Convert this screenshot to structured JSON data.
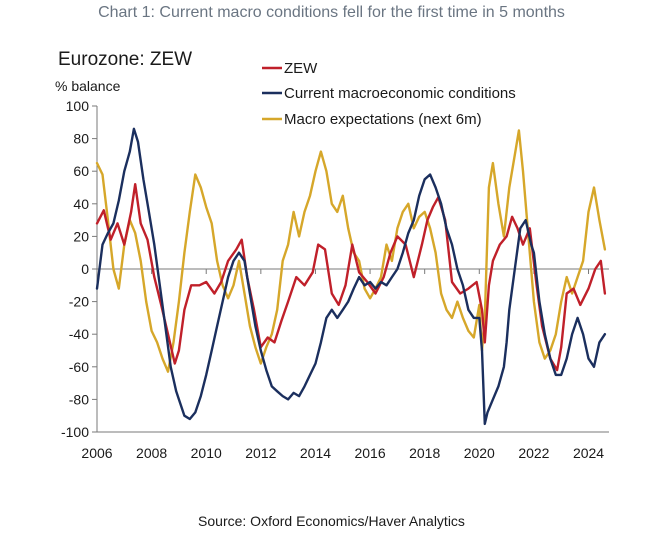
{
  "header": {
    "title": "Chart 1: Current macro conditions fell for the first time in 5 months",
    "panel_title": "Eurozone: ZEW",
    "y_unit": "% balance"
  },
  "footer": {
    "source": "Source: Oxford Economics/Haver Analytics"
  },
  "colors": {
    "zew": "#c0202a",
    "current": "#1b2f5e",
    "expectations": "#d6a72a",
    "axis": "#7a7a7a"
  },
  "chart_data": {
    "type": "line",
    "title": "Eurozone: ZEW",
    "ylabel": "% balance",
    "xlabel": "",
    "xlim": [
      2006.0,
      2024.75
    ],
    "ylim": [
      -100,
      100
    ],
    "x_ticks": [
      2006,
      2008,
      2010,
      2012,
      2014,
      2016,
      2018,
      2020,
      2022,
      2024
    ],
    "y_ticks": [
      -100,
      -80,
      -60,
      -40,
      -20,
      0,
      20,
      40,
      60,
      80,
      100
    ],
    "legend_position": "top-right",
    "series": [
      {
        "name": "ZEW",
        "color": "#c0202a",
        "x": [
          2006.0,
          2006.25,
          2006.5,
          2006.75,
          2007.0,
          2007.25,
          2007.4,
          2007.6,
          2007.85,
          2008.1,
          2008.35,
          2008.6,
          2008.85,
          2009.0,
          2009.2,
          2009.45,
          2009.75,
          2010.0,
          2010.3,
          2010.55,
          2010.8,
          2011.1,
          2011.3,
          2011.5,
          2011.75,
          2012.0,
          2012.25,
          2012.5,
          2012.75,
          2013.0,
          2013.3,
          2013.6,
          2013.9,
          2014.1,
          2014.35,
          2014.6,
          2014.85,
          2015.1,
          2015.35,
          2015.6,
          2015.9,
          2016.2,
          2016.5,
          2016.75,
          2017.0,
          2017.3,
          2017.6,
          2017.9,
          2018.1,
          2018.3,
          2018.5,
          2018.75,
          2019.0,
          2019.3,
          2019.6,
          2019.9,
          2020.1,
          2020.2,
          2020.35,
          2020.5,
          2020.75,
          2021.0,
          2021.2,
          2021.4,
          2021.6,
          2021.85,
          2022.1,
          2022.3,
          2022.6,
          2022.85,
          2023.0,
          2023.2,
          2023.45,
          2023.7,
          2024.0,
          2024.25,
          2024.45,
          2024.6
        ],
        "values": [
          28,
          36,
          18,
          28,
          15,
          35,
          52,
          28,
          18,
          -5,
          -22,
          -40,
          -58,
          -50,
          -25,
          -10,
          -10,
          -8,
          -15,
          -8,
          5,
          12,
          18,
          -5,
          -25,
          -48,
          -42,
          -45,
          -32,
          -20,
          -5,
          -10,
          -2,
          15,
          12,
          -15,
          -22,
          -10,
          15,
          -2,
          -8,
          -15,
          -5,
          10,
          20,
          15,
          -5,
          15,
          30,
          38,
          44,
          30,
          -8,
          -15,
          -12,
          -8,
          -25,
          -45,
          -10,
          5,
          15,
          20,
          32,
          25,
          15,
          25,
          -10,
          -35,
          -55,
          -62,
          -48,
          -15,
          -12,
          -22,
          -12,
          0,
          5,
          -15
        ]
      },
      {
        "name": "Current macroeconomic conditions",
        "color": "#1b2f5e",
        "x": [
          2006.0,
          2006.2,
          2006.4,
          2006.6,
          2006.8,
          2007.0,
          2007.2,
          2007.35,
          2007.5,
          2007.7,
          2007.9,
          2008.1,
          2008.3,
          2008.5,
          2008.7,
          2008.9,
          2009.0,
          2009.2,
          2009.4,
          2009.6,
          2009.8,
          2010.0,
          2010.2,
          2010.4,
          2010.6,
          2010.8,
          2011.0,
          2011.2,
          2011.4,
          2011.6,
          2011.8,
          2012.0,
          2012.2,
          2012.4,
          2012.6,
          2012.8,
          2013.0,
          2013.2,
          2013.4,
          2013.6,
          2013.8,
          2014.0,
          2014.2,
          2014.4,
          2014.6,
          2014.8,
          2015.0,
          2015.2,
          2015.4,
          2015.6,
          2015.8,
          2016.0,
          2016.2,
          2016.4,
          2016.6,
          2016.8,
          2017.0,
          2017.2,
          2017.4,
          2017.6,
          2017.8,
          2018.0,
          2018.2,
          2018.4,
          2018.6,
          2018.8,
          2019.0,
          2019.2,
          2019.4,
          2019.6,
          2019.8,
          2020.0,
          2020.1,
          2020.2,
          2020.3,
          2020.5,
          2020.7,
          2020.9,
          2021.0,
          2021.1,
          2021.3,
          2021.5,
          2021.7,
          2021.9,
          2022.0,
          2022.2,
          2022.4,
          2022.6,
          2022.8,
          2023.0,
          2023.2,
          2023.4,
          2023.6,
          2023.8,
          2024.0,
          2024.2,
          2024.4,
          2024.6
        ],
        "values": [
          -12,
          15,
          22,
          28,
          42,
          60,
          72,
          86,
          78,
          55,
          35,
          15,
          -10,
          -35,
          -60,
          -75,
          -80,
          -90,
          -92,
          -88,
          -78,
          -65,
          -50,
          -35,
          -20,
          -5,
          5,
          10,
          5,
          -15,
          -35,
          -50,
          -62,
          -72,
          -75,
          -78,
          -80,
          -76,
          -78,
          -72,
          -65,
          -58,
          -45,
          -30,
          -25,
          -30,
          -25,
          -20,
          -12,
          -5,
          -10,
          -8,
          -12,
          -8,
          -10,
          -5,
          0,
          10,
          22,
          30,
          45,
          55,
          58,
          50,
          40,
          25,
          15,
          0,
          -10,
          -25,
          -30,
          -30,
          -50,
          -95,
          -88,
          -80,
          -72,
          -60,
          -45,
          -25,
          0,
          25,
          30,
          15,
          10,
          -20,
          -40,
          -55,
          -65,
          -65,
          -55,
          -40,
          -30,
          -40,
          -55,
          -60,
          -45,
          -40
        ]
      },
      {
        "name": "Macro expectations (next 6m)",
        "color": "#d6a72a",
        "x": [
          2006.0,
          2006.2,
          2006.4,
          2006.6,
          2006.8,
          2007.0,
          2007.2,
          2007.4,
          2007.6,
          2007.8,
          2008.0,
          2008.2,
          2008.4,
          2008.6,
          2008.8,
          2009.0,
          2009.2,
          2009.4,
          2009.6,
          2009.8,
          2010.0,
          2010.2,
          2010.4,
          2010.6,
          2010.8,
          2011.0,
          2011.2,
          2011.4,
          2011.6,
          2011.8,
          2012.0,
          2012.2,
          2012.4,
          2012.6,
          2012.8,
          2013.0,
          2013.2,
          2013.4,
          2013.6,
          2013.8,
          2014.0,
          2014.2,
          2014.4,
          2014.6,
          2014.8,
          2015.0,
          2015.2,
          2015.4,
          2015.6,
          2015.8,
          2016.0,
          2016.2,
          2016.4,
          2016.6,
          2016.8,
          2017.0,
          2017.2,
          2017.4,
          2017.6,
          2017.8,
          2018.0,
          2018.2,
          2018.4,
          2018.6,
          2018.8,
          2019.0,
          2019.2,
          2019.4,
          2019.6,
          2019.8,
          2020.0,
          2020.1,
          2020.2,
          2020.35,
          2020.5,
          2020.7,
          2020.9,
          2021.1,
          2021.3,
          2021.45,
          2021.6,
          2021.8,
          2022.0,
          2022.2,
          2022.4,
          2022.6,
          2022.8,
          2023.0,
          2023.2,
          2023.4,
          2023.6,
          2023.8,
          2024.0,
          2024.2,
          2024.4,
          2024.6
        ],
        "values": [
          65,
          58,
          30,
          0,
          -12,
          15,
          30,
          22,
          5,
          -20,
          -38,
          -45,
          -55,
          -63,
          -45,
          -20,
          10,
          35,
          58,
          50,
          38,
          28,
          5,
          -10,
          -18,
          -10,
          5,
          -15,
          -35,
          -48,
          -58,
          -48,
          -40,
          -25,
          5,
          15,
          35,
          20,
          35,
          45,
          60,
          72,
          60,
          40,
          35,
          45,
          25,
          10,
          5,
          -12,
          -18,
          -12,
          -5,
          15,
          5,
          25,
          35,
          40,
          25,
          32,
          35,
          25,
          10,
          -15,
          -25,
          -30,
          -20,
          -30,
          -38,
          -42,
          -22,
          -50,
          -30,
          50,
          65,
          40,
          20,
          50,
          70,
          85,
          60,
          20,
          -20,
          -45,
          -55,
          -50,
          -40,
          -20,
          -5,
          -15,
          -5,
          5,
          35,
          50,
          30,
          12
        ]
      }
    ]
  }
}
